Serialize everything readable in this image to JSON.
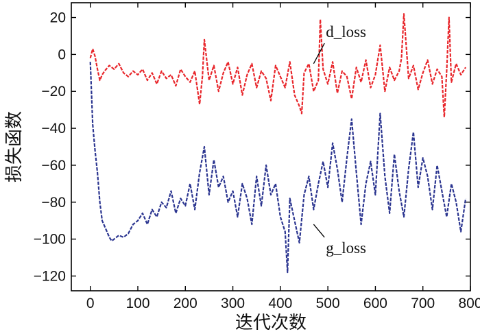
{
  "chart_data": {
    "type": "line",
    "xlabel": "迭代次数",
    "ylabel": "损失函数",
    "xlim": [
      -40,
      800
    ],
    "ylim": [
      -128,
      28
    ],
    "x_ticks": [
      0,
      100,
      200,
      300,
      400,
      500,
      600,
      700,
      800
    ],
    "y_ticks": [
      20,
      0,
      -20,
      -40,
      -60,
      -80,
      -100,
      -120
    ],
    "x_tick_labels": [
      "0",
      "100",
      "200",
      "300",
      "400",
      "500",
      "600",
      "700",
      "800"
    ],
    "y_tick_labels": [
      "20",
      "0",
      "−20",
      "−40",
      "−60",
      "−80",
      "−100",
      "−120"
    ],
    "grid": false,
    "legend": "none",
    "series": [
      {
        "name": "d_loss",
        "color": "#e8262b",
        "line_style": "dashed",
        "label_text": "d_loss",
        "label_at": [
          490,
          12
        ],
        "x": [
          0,
          5,
          10,
          15,
          20,
          25,
          30,
          40,
          50,
          60,
          70,
          80,
          90,
          100,
          110,
          120,
          130,
          140,
          150,
          160,
          170,
          180,
          190,
          200,
          210,
          220,
          230,
          236,
          240,
          250,
          260,
          270,
          280,
          290,
          300,
          310,
          320,
          330,
          340,
          350,
          360,
          370,
          380,
          390,
          400,
          410,
          420,
          430,
          440,
          445,
          450,
          460,
          470,
          480,
          484,
          490,
          500,
          510,
          520,
          530,
          540,
          550,
          560,
          570,
          580,
          590,
          600,
          610,
          620,
          630,
          640,
          650,
          655,
          660,
          670,
          680,
          690,
          700,
          710,
          720,
          730,
          740,
          745,
          750,
          755,
          760,
          770,
          780,
          790
        ],
        "y": [
          -2,
          3,
          -1,
          -8,
          -14,
          -11,
          -9,
          -6,
          -8,
          -5,
          -10,
          -12,
          -9,
          -11,
          -8,
          -14,
          -10,
          -16,
          -9,
          -13,
          -11,
          -17,
          -8,
          -12,
          -15,
          -9,
          -27,
          -12,
          8,
          -14,
          -6,
          -20,
          -10,
          -4,
          -16,
          -7,
          -22,
          -11,
          -5,
          -18,
          -9,
          -13,
          -25,
          -6,
          -12,
          -18,
          -4,
          -22,
          -28,
          -32,
          -10,
          -5,
          -20,
          -14,
          19,
          -8,
          -16,
          -4,
          -21,
          -9,
          -12,
          -24,
          -7,
          -15,
          -3,
          -18,
          -11,
          5,
          -20,
          -7,
          -14,
          -9,
          -2,
          22,
          -13,
          -6,
          -19,
          -10,
          -3,
          -16,
          -8,
          -12,
          -34,
          -9,
          20,
          -15,
          -5,
          -11,
          -7
        ]
      },
      {
        "name": "g_loss",
        "color": "#2b3590",
        "line_style": "dashed",
        "label_text": "g_loss",
        "label_at": [
          490,
          -105
        ],
        "x": [
          0,
          5,
          10,
          15,
          20,
          25,
          30,
          35,
          40,
          45,
          50,
          60,
          70,
          80,
          90,
          100,
          110,
          120,
          130,
          140,
          150,
          160,
          170,
          180,
          190,
          200,
          210,
          220,
          230,
          240,
          250,
          260,
          270,
          280,
          290,
          300,
          310,
          320,
          330,
          340,
          350,
          360,
          370,
          380,
          390,
          400,
          410,
          415,
          420,
          430,
          440,
          450,
          460,
          470,
          480,
          490,
          500,
          510,
          520,
          530,
          540,
          550,
          560,
          570,
          580,
          590,
          600,
          610,
          620,
          630,
          640,
          650,
          660,
          670,
          680,
          690,
          700,
          710,
          720,
          730,
          740,
          750,
          760,
          770,
          780,
          790
        ],
        "y": [
          -4,
          -38,
          -52,
          -64,
          -80,
          -90,
          -93,
          -96,
          -99,
          -101,
          -100,
          -98,
          -99,
          -97,
          -92,
          -90,
          -86,
          -92,
          -84,
          -88,
          -80,
          -83,
          -74,
          -86,
          -78,
          -82,
          -70,
          -84,
          -64,
          -50,
          -76,
          -57,
          -72,
          -66,
          -80,
          -74,
          -88,
          -70,
          -78,
          -92,
          -66,
          -82,
          -60,
          -76,
          -70,
          -88,
          -96,
          -118,
          -78,
          -90,
          -102,
          -76,
          -66,
          -84,
          -70,
          -58,
          -72,
          -48,
          -62,
          -80,
          -56,
          -35,
          -64,
          -92,
          -70,
          -58,
          -76,
          -32,
          -66,
          -86,
          -54,
          -74,
          -88,
          -62,
          -42,
          -72,
          -56,
          -66,
          -84,
          -60,
          -74,
          -88,
          -70,
          -80,
          -96,
          -78
        ]
      }
    ]
  }
}
